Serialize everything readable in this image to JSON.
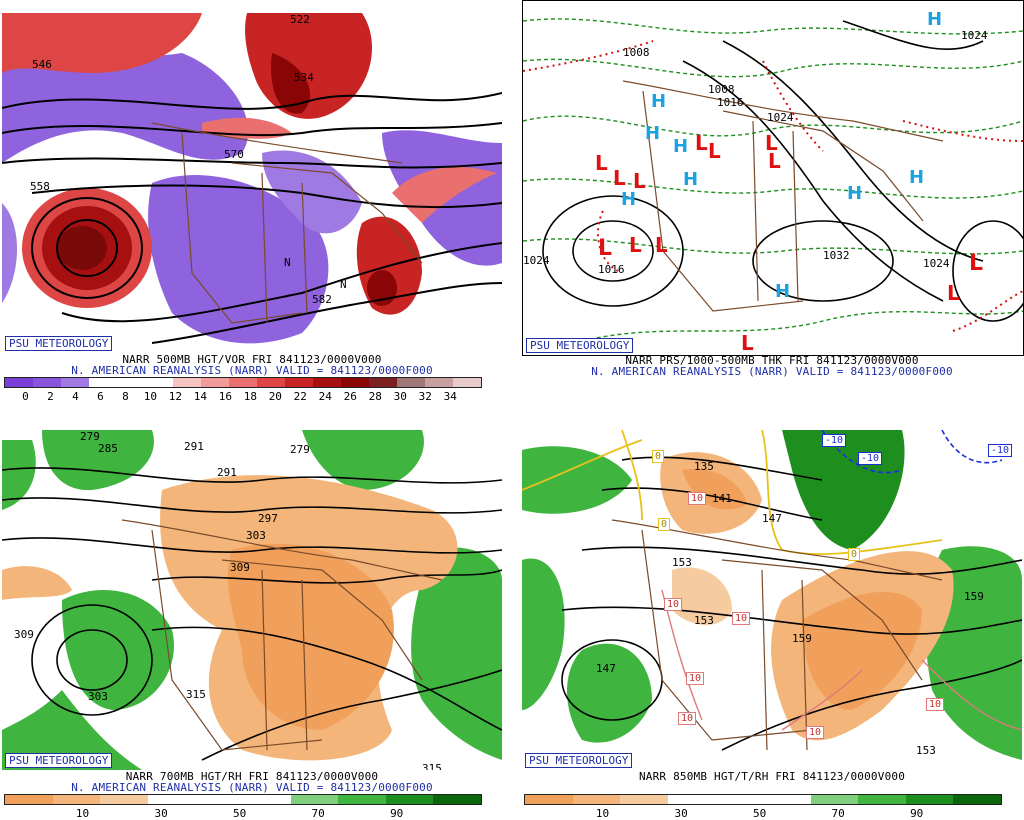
{
  "badge": "PSU METEOROLOGY",
  "panels": [
    {
      "id": "p500",
      "caption1": "NARR 500MB HGT/VOR FRI 841123/0000V000",
      "caption2": "N. AMERICAN REANALYSIS (NARR) VALID = 841123/0000F000",
      "labels": [
        "522",
        "534",
        "546",
        "570",
        "558",
        "582",
        "N",
        "N"
      ],
      "legend_ticks": [
        "0",
        "2",
        "4",
        "6",
        "8",
        "10",
        "12",
        "14",
        "16",
        "18",
        "20",
        "22",
        "24",
        "26",
        "28",
        "30",
        "32",
        "34"
      ],
      "legend_colors": [
        "#7a3fd6",
        "#8b55db",
        "#a07ae3",
        "#ffffff",
        "#ffffff",
        "#ffffff",
        "#f7c4c4",
        "#f29b9b",
        "#ea6f6f",
        "#de4646",
        "#c92424",
        "#a61010",
        "#8a0606",
        "#7a2020",
        "#9e7777",
        "#c99e9e",
        "#e8cccc"
      ]
    },
    {
      "id": "pthk",
      "caption1": "NARR PRS/1000-500MB THK FRI 841123/0000V000",
      "caption2": "N. AMERICAN REANALYSIS (NARR) VALID = 841123/0000F000",
      "labels": [
        "1008",
        "1016",
        "1024",
        "1024",
        "1032",
        "1024",
        "1024",
        "1016",
        "1008"
      ],
      "highs": [
        "H",
        "H",
        "H",
        "H",
        "H",
        "H",
        "H",
        "H",
        "H"
      ],
      "lows": [
        "L",
        "L",
        "L",
        "L",
        "L",
        "L",
        "L",
        "L",
        "L",
        "L",
        "L",
        "L",
        "L"
      ]
    },
    {
      "id": "p700",
      "caption1": "NARR 700MB HGT/RH FRI 841123/0000V000",
      "caption2": "N. AMERICAN REANALYSIS (NARR) VALID = 841123/0000F000",
      "labels": [
        "279",
        "285",
        "291",
        "279",
        "291",
        "297",
        "303",
        "309",
        "309",
        "303",
        "315",
        "315"
      ],
      "legend_ticks": [
        "10",
        "30",
        "50",
        "70",
        "90"
      ]
    },
    {
      "id": "p850",
      "caption1": "NARR 850MB HGT/T/RH FRI 841123/0000V000",
      "labels": [
        "135",
        "141",
        "147",
        "153",
        "153",
        "159",
        "159",
        "147",
        "153",
        "-10",
        "-10",
        "-10",
        "10",
        "10",
        "10",
        "10",
        "10",
        "10",
        "10",
        "0",
        "0",
        "0"
      ],
      "legend_ticks": [
        "10",
        "30",
        "50",
        "70",
        "90"
      ]
    }
  ],
  "rh_colors": [
    "#f0a05a",
    "#f3b57a",
    "#f7cba0",
    "#ffffff",
    "#ffffff",
    "#ffffff",
    "#7fcf7f",
    "#3fb43f",
    "#1e8f1e",
    "#0b660b"
  ]
}
